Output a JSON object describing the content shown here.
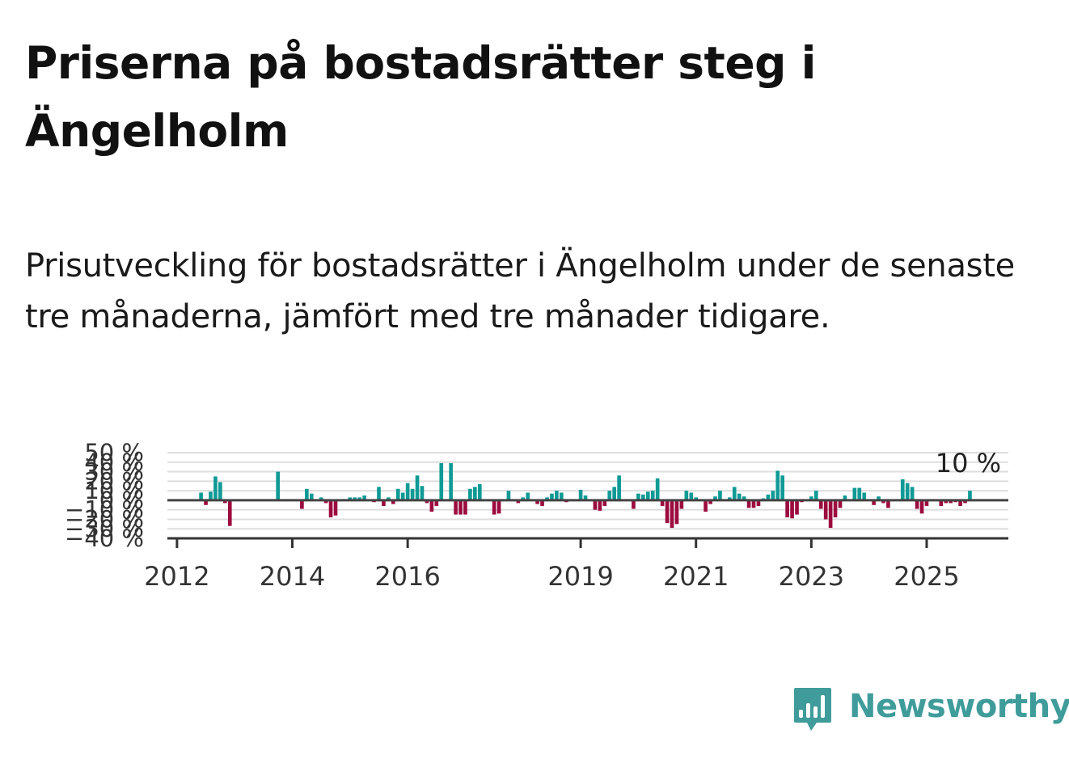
{
  "title": "Priserna på bostadsrätter steg i Ängelholm",
  "subtitle": "Prisutveckling för bostadsrätter i Ängelholm under de senaste tre månaderna, jämfört med tre månader tidigare.",
  "brand": {
    "name": "Newsworthy",
    "color": "#3f9c9b",
    "icon": "bar-chart-speech-bubble-icon"
  },
  "colors": {
    "positive": "#0f9a96",
    "negative": "#9c0b3f",
    "grid": "#dddddd",
    "zero_line": "#444444"
  },
  "chart_data": {
    "type": "bar",
    "x_start": "2012-01",
    "x_interval": "month",
    "xlim": [
      "2011-11",
      "2026-06"
    ],
    "ylim": [
      -40,
      50
    ],
    "y_ticks": [
      50,
      40,
      30,
      20,
      10,
      0,
      -10,
      -20,
      -30,
      -40
    ],
    "y_tick_labels": [
      "50 %",
      "40 %",
      "30 %",
      "20 %",
      "10 %",
      "0 %",
      "−10 %",
      "−20 %",
      "−30 %",
      "−40 %"
    ],
    "x_ticks": [
      "2012-01",
      "2014-01",
      "2016-01",
      "2019-01",
      "2021-01",
      "2023-01",
      "2025-01"
    ],
    "x_tick_labels": [
      "2012",
      "2014",
      "2016",
      "2019",
      "2021",
      "2023",
      "2025"
    ],
    "grid": true,
    "last_value_label": "10 %",
    "values": [
      null,
      null,
      null,
      null,
      null,
      8,
      -5,
      9,
      25,
      19,
      -3,
      -27,
      null,
      null,
      null,
      null,
      null,
      null,
      null,
      null,
      null,
      30,
      null,
      null,
      null,
      null,
      -9,
      12,
      7,
      0,
      3,
      -3,
      -18,
      -16,
      0,
      0,
      3,
      3,
      3,
      5,
      0,
      -2,
      14,
      -6,
      3,
      -4,
      12,
      8,
      18,
      12,
      26,
      15,
      -3,
      -12,
      -6,
      39,
      0,
      39,
      -15,
      -15,
      -15,
      12,
      14,
      17,
      0,
      0,
      -15,
      -14,
      0,
      10,
      0,
      -3,
      3,
      8,
      0,
      -4,
      -6,
      3,
      7,
      10,
      8,
      -2,
      0,
      0,
      11,
      5,
      0,
      -10,
      -11,
      -6,
      10,
      14,
      26,
      0,
      0,
      -9,
      7,
      6,
      9,
      10,
      23,
      -6,
      -24,
      -29,
      -25,
      -9,
      10,
      8,
      3,
      0,
      -12,
      -4,
      4,
      10,
      0,
      3,
      14,
      7,
      4,
      -8,
      -8,
      -6,
      2,
      6,
      10,
      31,
      26,
      -18,
      -19,
      -15,
      -2,
      0,
      4,
      10,
      -9,
      -20,
      -29,
      -18,
      -8,
      5,
      0,
      13,
      13,
      8,
      0,
      -5,
      4,
      -3,
      -8,
      0,
      0,
      22,
      18,
      14,
      -9,
      -14,
      -6,
      0,
      0,
      -6,
      -3,
      -3,
      -2,
      -6,
      -3,
      10
    ]
  }
}
